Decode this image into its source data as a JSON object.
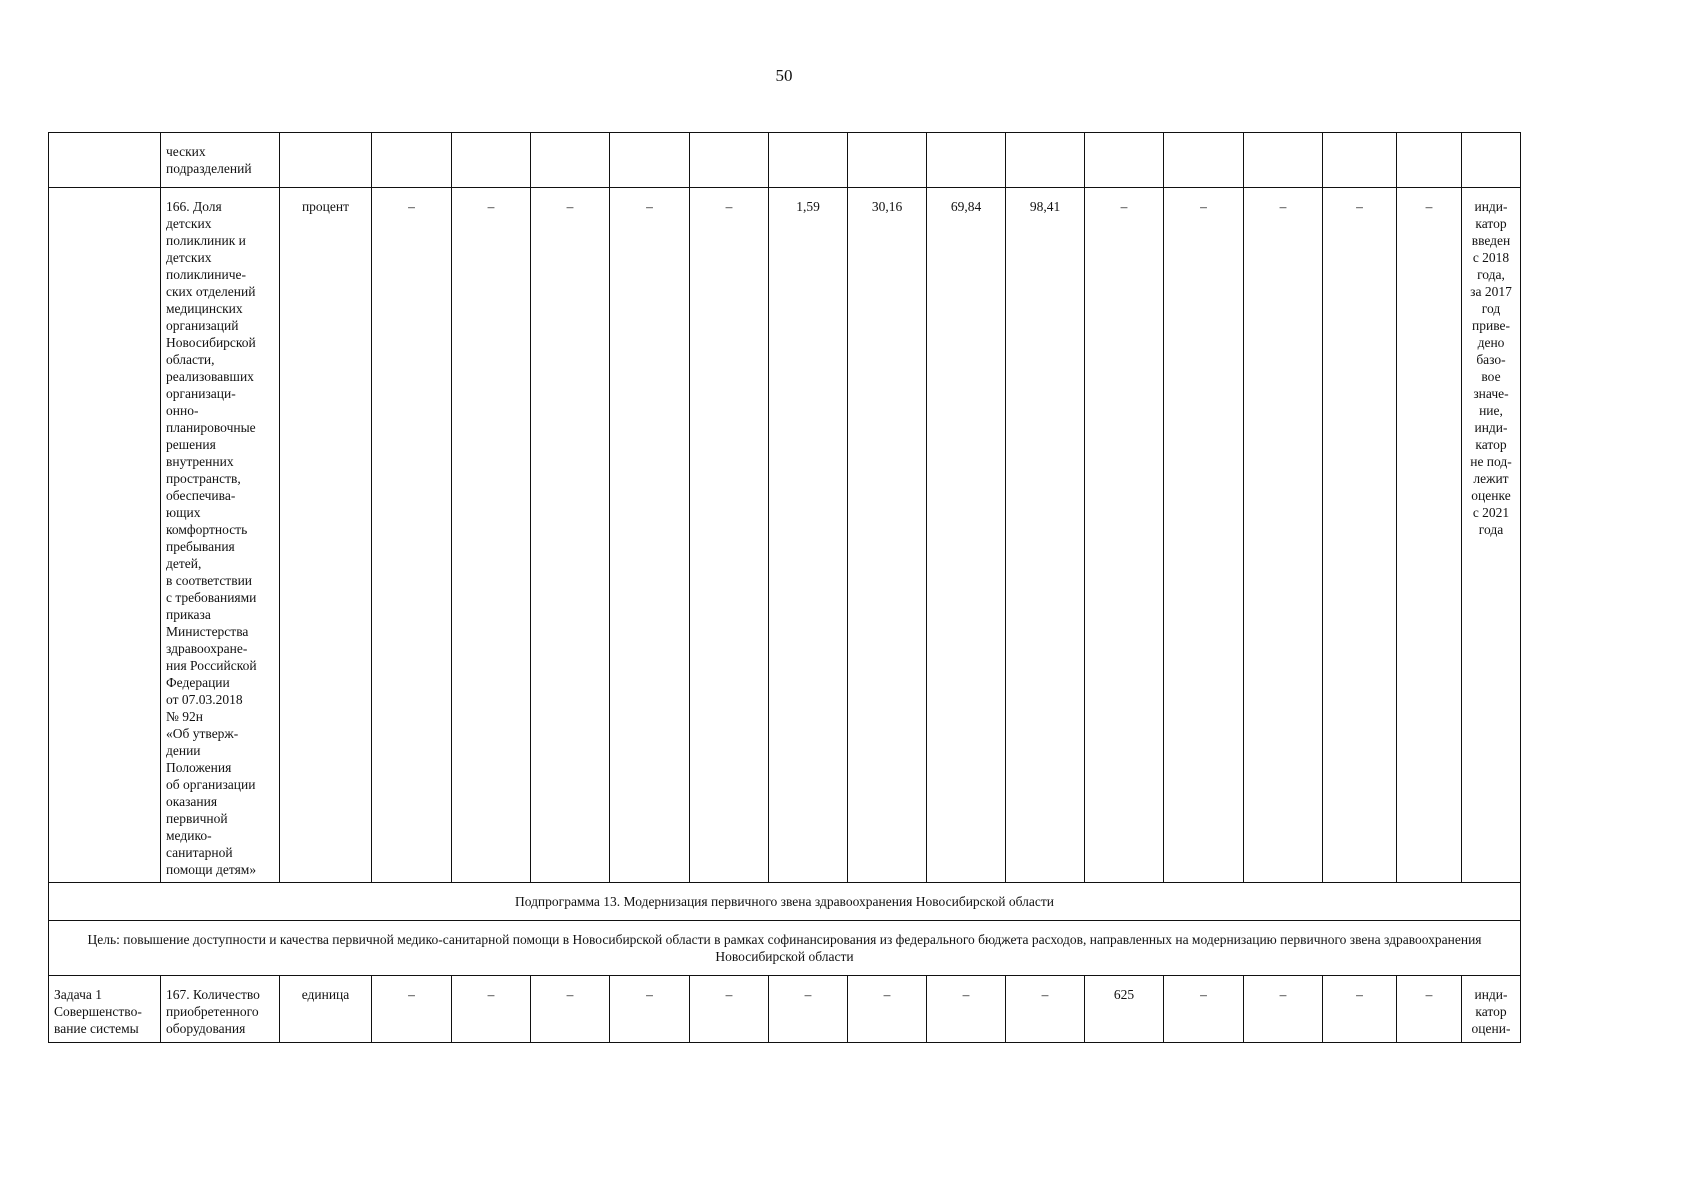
{
  "page_number": "50",
  "rows": [
    {
      "task": "",
      "indicator": "ческих\nподразделений",
      "unit": "",
      "values": [
        "",
        "",
        "",
        "",
        "",
        "",
        "",
        "",
        "",
        "",
        "",
        "",
        "",
        ""
      ],
      "note": ""
    },
    {
      "task": "",
      "indicator": "166. Доля\nдетских\nполиклиник и\nдетских\nполиклиниче-\nских отделений\nмедицинских\nорганизаций\nНовосибирской\nобласти,\nреализовавших\nорганизаци-\nонно-\nпланировочные\nрешения\nвнутренних\nпространств,\nобеспечива-\nющих\nкомфортность\nпребывания\nдетей,\nв соответствии\nс требованиями\nприказа\nМинистерства\nздравоохране-\nния Российской\nФедерации\nот 07.03.2018\n№ 92н\n«Об утверж-\nдении\nПоложения\nоб организации\nоказания\nпервичной\nмедико-\nсанитарной\nпомощи детям»",
      "unit": "процент",
      "values": [
        "–",
        "–",
        "–",
        "–",
        "–",
        "1,59",
        "30,16",
        "69,84",
        "98,41",
        "–",
        "–",
        "–",
        "–",
        "–"
      ],
      "note": "инди-\nкатор\nвведен\nс 2018\nгода,\nза 2017\nгод\nприве-\nдено\nбазо-\nвое\nзначе-\nние,\nинди-\nкатор\nне под-\nлежит\nоценке\nс 2021\nгода"
    },
    {
      "task": "Задача 1\nСовершенство-\nвание системы",
      "indicator": "167. Количество\nприобретенного\nоборудования",
      "unit": "единица",
      "values": [
        "–",
        "–",
        "–",
        "–",
        "–",
        "–",
        "–",
        "–",
        "–",
        "625",
        "–",
        "–",
        "–",
        "–"
      ],
      "note": "инди-\nкатор\nоцени-"
    }
  ],
  "subprogram": "Подпрограмма 13. Модернизация первичного звена здравоохранения Новосибирской области",
  "goal": "Цель: повышение доступности и качества первичной медико-санитарной помощи в Новосибирской области в рамках софинансирования из федерального бюджета расходов, направленных на модернизацию первичного звена здравоохранения Новосибирской области"
}
